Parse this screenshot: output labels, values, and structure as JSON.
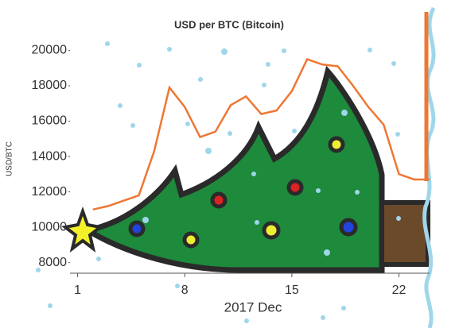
{
  "chart_data": {
    "type": "line",
    "title": "USD per BTC (Bitcoin)",
    "x_label": "2017 Dec",
    "y_label": "USD/BTC",
    "x": [
      2,
      3,
      4,
      5,
      6,
      7,
      8,
      9,
      10,
      11,
      12,
      13,
      14,
      15,
      16,
      17,
      18,
      19,
      20,
      21,
      22,
      23,
      24
    ],
    "series": [
      {
        "name": "USD per BTC",
        "color": "#ee7733",
        "values": [
          11000,
          11200,
          11500,
          11800,
          14300,
          17900,
          16800,
          15100,
          15400,
          16900,
          17400,
          16400,
          16600,
          17700,
          19500,
          19200,
          19100,
          18000,
          16800,
          15800,
          13000,
          12700,
          12700
        ]
      }
    ],
    "xlim": [
      0.5,
      24
    ],
    "xticks": [
      1,
      8,
      15,
      22
    ],
    "ylim": [
      7400,
      22400
    ],
    "yticks": [
      8000,
      10000,
      12000,
      14000,
      16000,
      18000,
      20000
    ]
  }
}
